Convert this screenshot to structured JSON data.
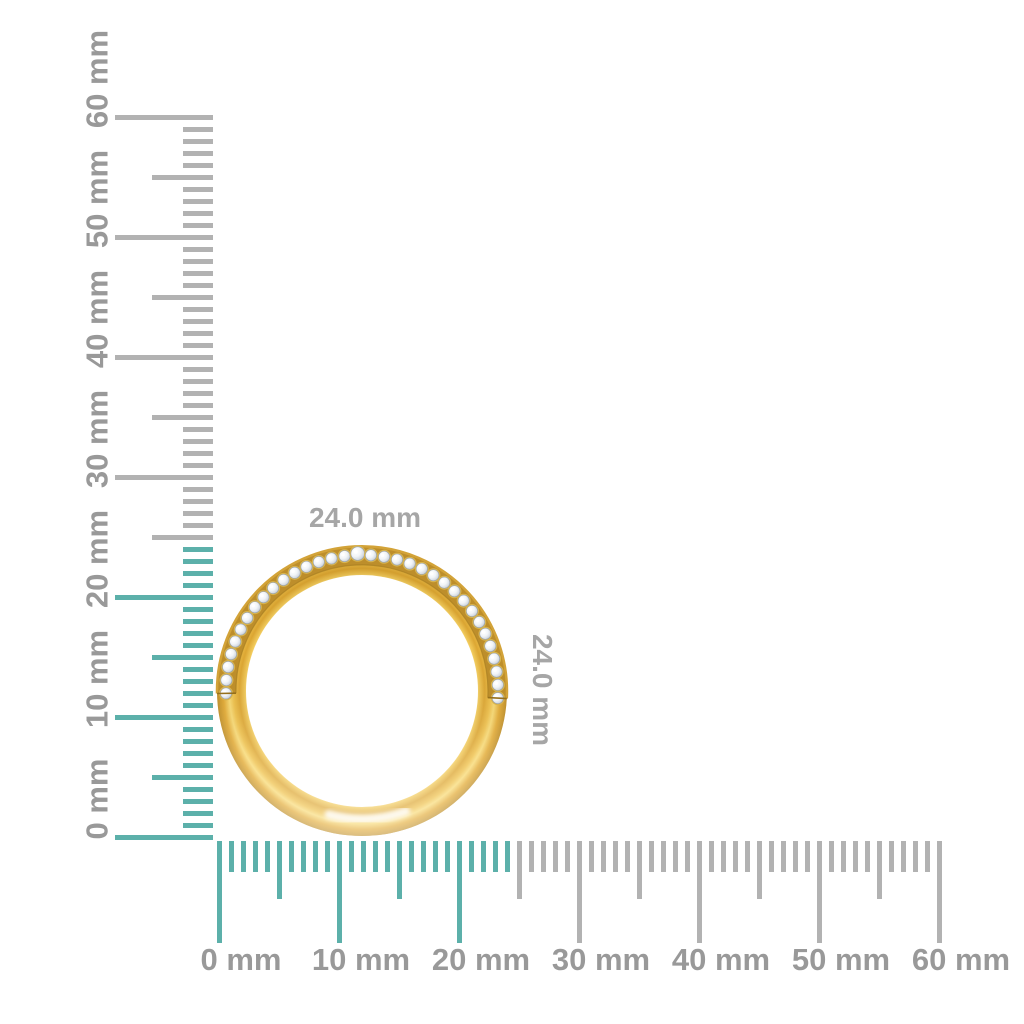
{
  "page": {
    "background": "#ffffff"
  },
  "rulers": {
    "unit": "mm",
    "min_mm": 0,
    "max_mm": 60,
    "tick_every_mm": 1,
    "medium_tick_every_mm": 5,
    "labeled_tick_every_mm": 10,
    "highlight_up_to_mm": 24,
    "tick_color_gray": "#b2b2b2",
    "tick_color_highlight": "#5cb0aa",
    "label_color": "#999999",
    "vertical_labels": [
      "0 mm",
      "10 mm",
      "20 mm",
      "30 mm",
      "40 mm",
      "50 mm",
      "60 mm"
    ],
    "horizontal_labels": [
      "0 mm",
      "10 mm",
      "20 mm",
      "30 mm",
      "40 mm",
      "50 mm",
      "60 mm"
    ]
  },
  "object": {
    "name": "gold-diamond-ring",
    "width_label": "24.0 mm",
    "height_label": "24.0 mm",
    "label_color": "#a6a6a6",
    "diamond_count": 34,
    "gold_color": "#e9b83e",
    "gold_dark_color": "#bd8e2b",
    "diamond_color": "#eef2f5"
  }
}
